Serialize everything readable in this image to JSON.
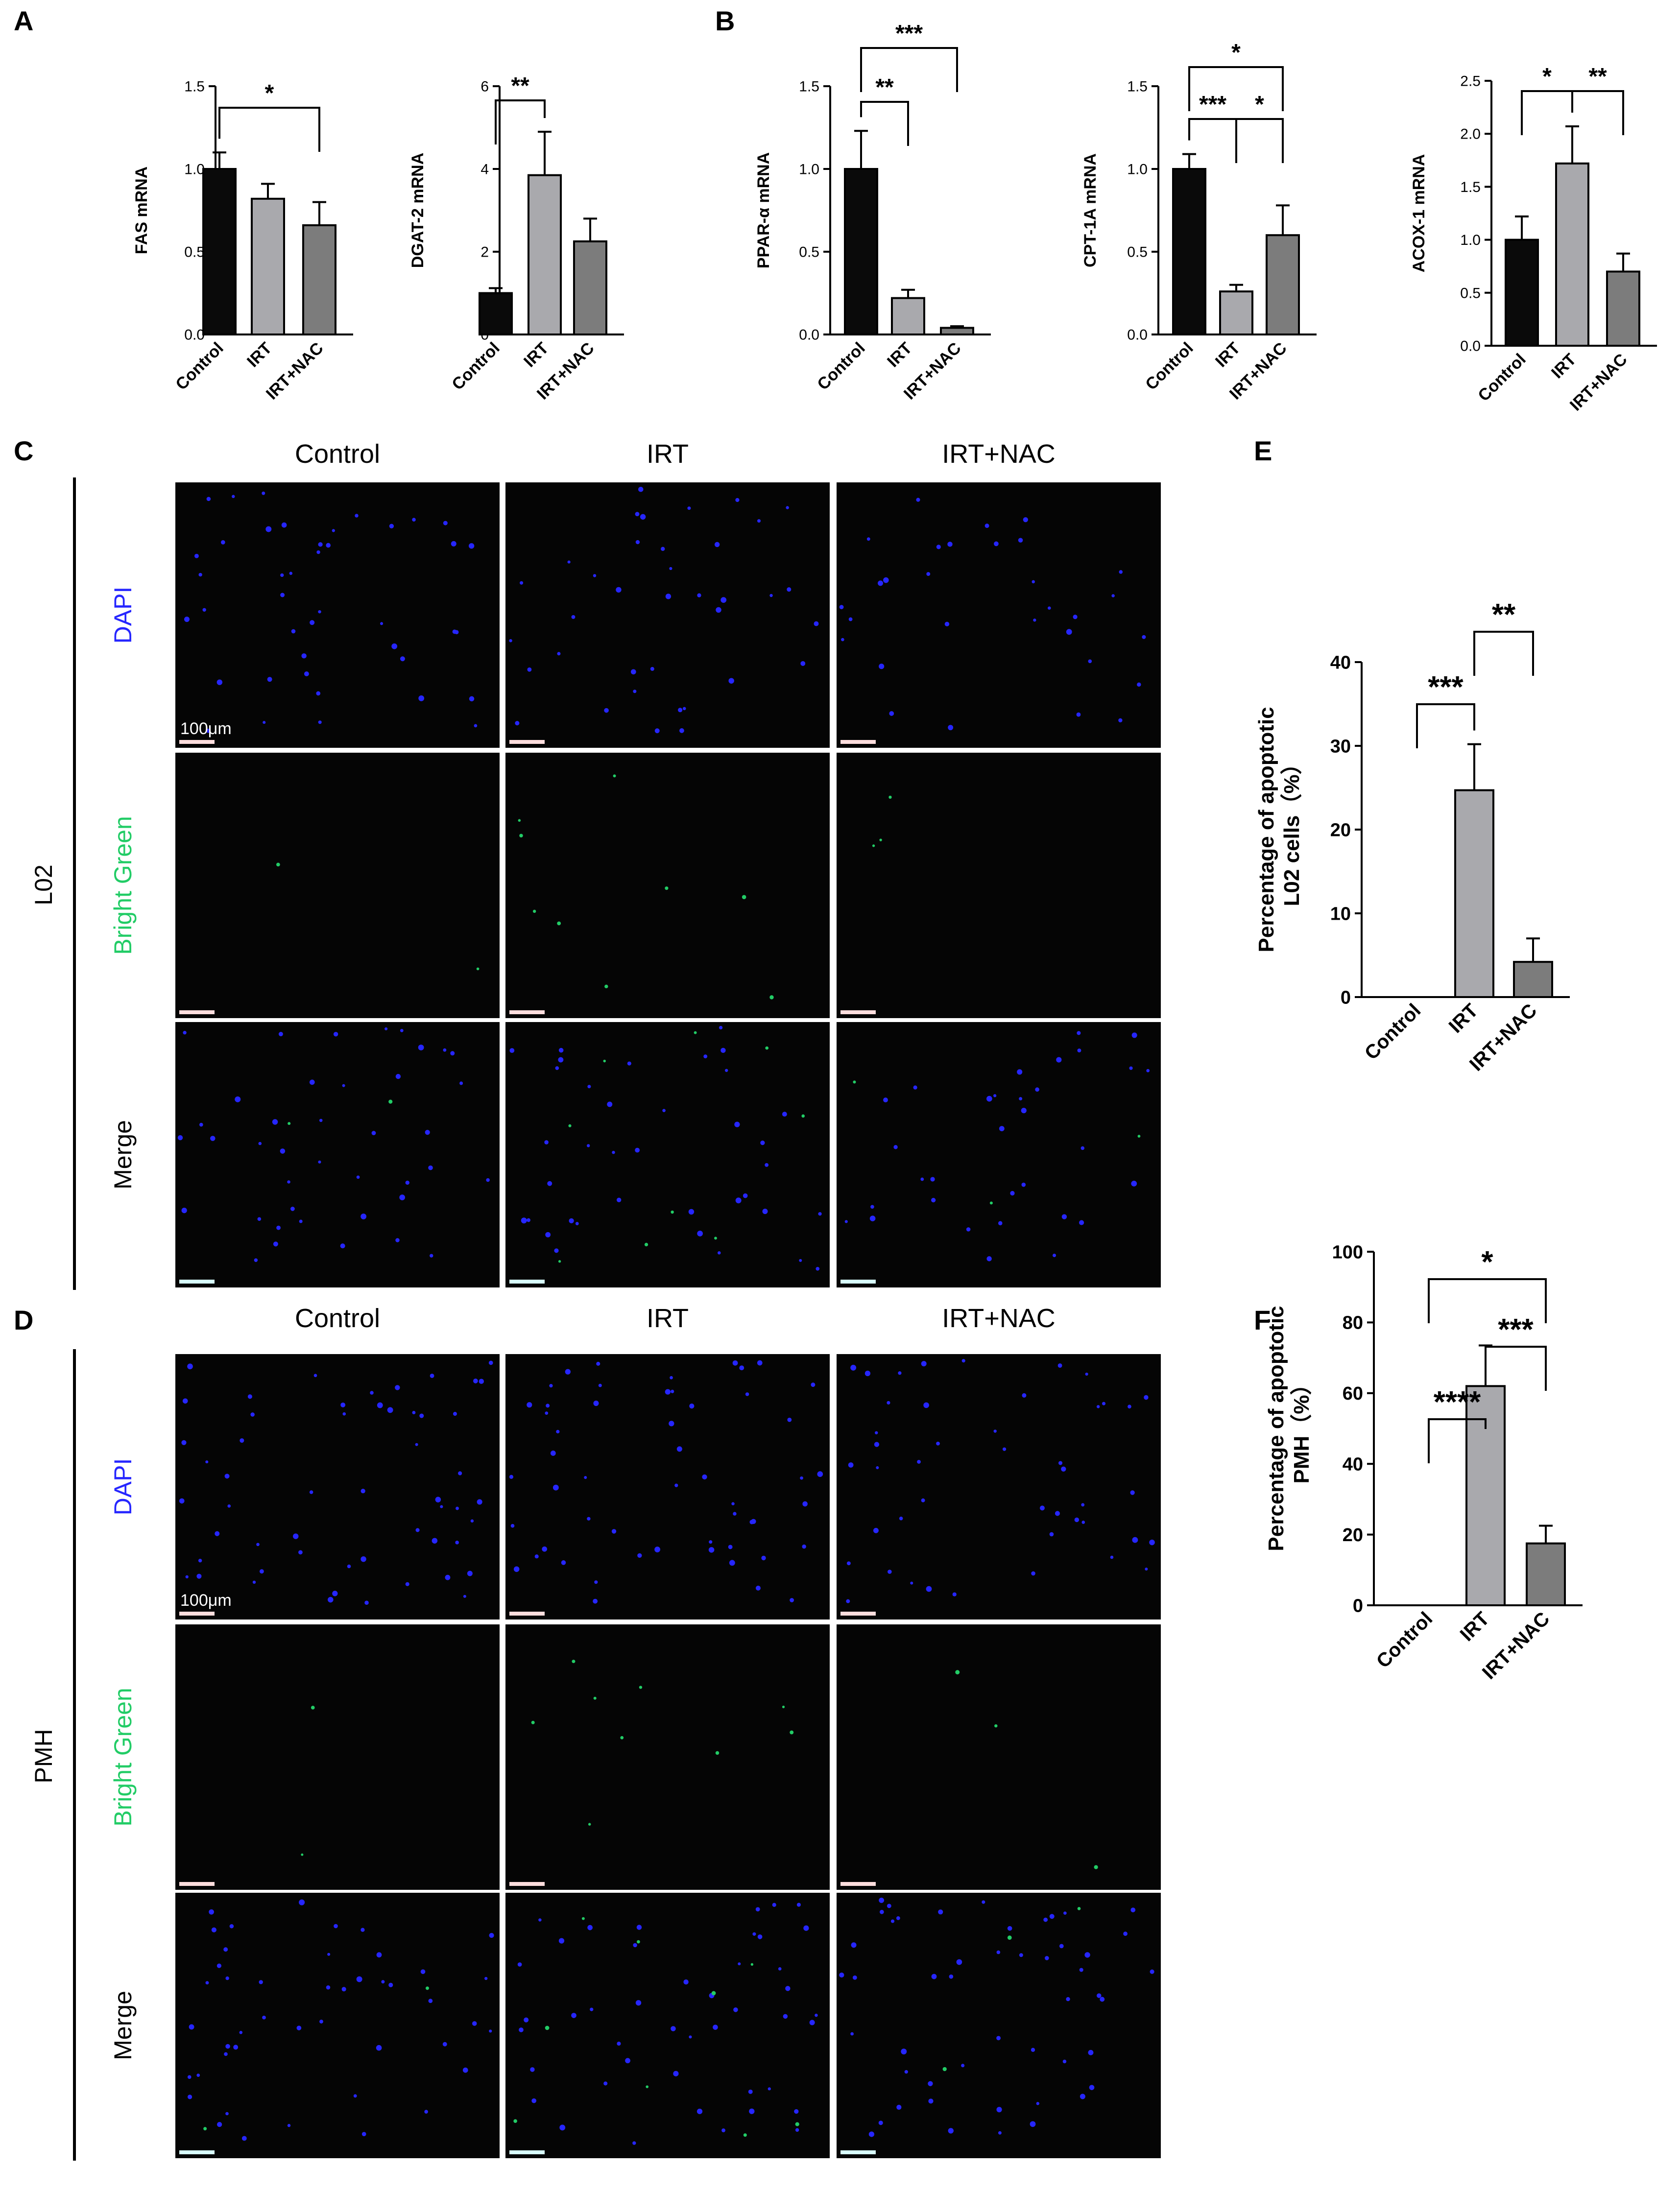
{
  "panels": {
    "labels": [
      "A",
      "B",
      "C",
      "D",
      "E",
      "F"
    ]
  },
  "colors": {
    "control": "#0a0a0a",
    "irt": "#a9a9ad",
    "irt_nac": "#7c7c7c",
    "micro_bg": "#050505",
    "dapi": "#2626ff",
    "green": "#22cc66"
  },
  "chart_data": [
    {
      "id": "A1",
      "panel": "A",
      "type": "bar",
      "ylabel": "FAS mRNA",
      "categories": [
        "Control",
        "IRT",
        "IRT+NAC"
      ],
      "values": [
        1.0,
        0.82,
        0.66
      ],
      "errors": [
        0.1,
        0.09,
        0.14
      ],
      "ylim": [
        0,
        1.5
      ],
      "yticks": [
        "0.0",
        "0.5",
        "1.0",
        "1.5"
      ],
      "significance": [
        {
          "from": 0,
          "to": 2,
          "label": "*"
        }
      ]
    },
    {
      "id": "A2",
      "panel": "A",
      "type": "bar",
      "ylabel": "DGAT-2 mRNA",
      "categories": [
        "Control",
        "IRT",
        "IRT+NAC"
      ],
      "values": [
        1.0,
        3.85,
        2.25
      ],
      "errors": [
        0.12,
        1.05,
        0.55
      ],
      "ylim": [
        0,
        6
      ],
      "yticks": [
        "0",
        "2",
        "4",
        "6"
      ],
      "significance": [
        {
          "from": 0,
          "to": 1,
          "label": "**"
        }
      ]
    },
    {
      "id": "B1",
      "panel": "B",
      "type": "bar",
      "ylabel": "PPAR-α mRNA",
      "categories": [
        "Control",
        "IRT",
        "IRT+NAC"
      ],
      "values": [
        1.0,
        0.22,
        0.04
      ],
      "errors": [
        0.23,
        0.05,
        0.01
      ],
      "ylim": [
        0,
        1.5
      ],
      "yticks": [
        "0.0",
        "0.5",
        "1.0",
        "1.5"
      ],
      "significance": [
        {
          "from": 0,
          "to": 1,
          "label": "**"
        },
        {
          "from": 0,
          "to": 2,
          "label": "***"
        }
      ]
    },
    {
      "id": "B2",
      "panel": "B",
      "type": "bar",
      "ylabel": "CPT-1A mRNA",
      "categories": [
        "Control",
        "IRT",
        "IRT+NAC"
      ],
      "values": [
        1.0,
        0.26,
        0.6
      ],
      "errors": [
        0.09,
        0.04,
        0.18
      ],
      "ylim": [
        0,
        1.5
      ],
      "yticks": [
        "0.0",
        "0.5",
        "1.0",
        "1.5"
      ],
      "significance": [
        {
          "from": 0,
          "to": 1,
          "label": "***"
        },
        {
          "from": 1,
          "to": 2,
          "label": "*"
        },
        {
          "from": 0,
          "to": 2,
          "label": "*"
        }
      ]
    },
    {
      "id": "B3",
      "panel": "B",
      "type": "bar",
      "ylabel": "ACOX-1 mRNA",
      "categories": [
        "Control",
        "IRT",
        "IRT+NAC"
      ],
      "values": [
        1.0,
        1.72,
        0.7
      ],
      "errors": [
        0.22,
        0.35,
        0.17
      ],
      "ylim": [
        0,
        2.5
      ],
      "yticks": [
        "0.0",
        "0.5",
        "1.0",
        "1.5",
        "2.0",
        "2.5"
      ],
      "significance": [
        {
          "from": 0,
          "to": 1,
          "label": "*"
        },
        {
          "from": 1,
          "to": 2,
          "label": "**"
        }
      ]
    },
    {
      "id": "E",
      "panel": "E",
      "type": "bar",
      "ylabel_lines": [
        "Percentage of apoptotic",
        "L02 cells（%）"
      ],
      "categories": [
        "Control",
        "IRT",
        "IRT+NAC"
      ],
      "values": [
        0,
        24.7,
        4.2
      ],
      "errors": [
        0,
        5.5,
        2.8
      ],
      "ylim": [
        0,
        40
      ],
      "yticks": [
        "0",
        "10",
        "20",
        "30",
        "40"
      ],
      "significance": [
        {
          "from": 0,
          "to": 1,
          "label": "***"
        },
        {
          "from": 1,
          "to": 2,
          "label": "**"
        }
      ]
    },
    {
      "id": "F",
      "panel": "F",
      "type": "bar",
      "ylabel_lines": [
        "Percentage of apoptotic",
        "PMH（%）"
      ],
      "categories": [
        "Control",
        "IRT",
        "IRT+NAC"
      ],
      "values": [
        0,
        62,
        17.5
      ],
      "errors": [
        0,
        11.5,
        5
      ],
      "ylim": [
        0,
        100
      ],
      "yticks": [
        "0",
        "20",
        "40",
        "60",
        "80",
        "100"
      ],
      "significance": [
        {
          "from": 0,
          "to": 1,
          "label": "****"
        },
        {
          "from": 1,
          "to": 2,
          "label": "***"
        },
        {
          "from": 0,
          "to": 2,
          "label": "*"
        }
      ]
    }
  ],
  "micrographs": {
    "columns": [
      "Control",
      "IRT",
      "IRT+NAC"
    ],
    "rows": [
      "DAPI",
      "Bright Green",
      "Merge"
    ],
    "scale_bar_label": "100μm",
    "groups": [
      {
        "id": "C",
        "label": "L02"
      },
      {
        "id": "D",
        "label": "PMH"
      }
    ]
  }
}
